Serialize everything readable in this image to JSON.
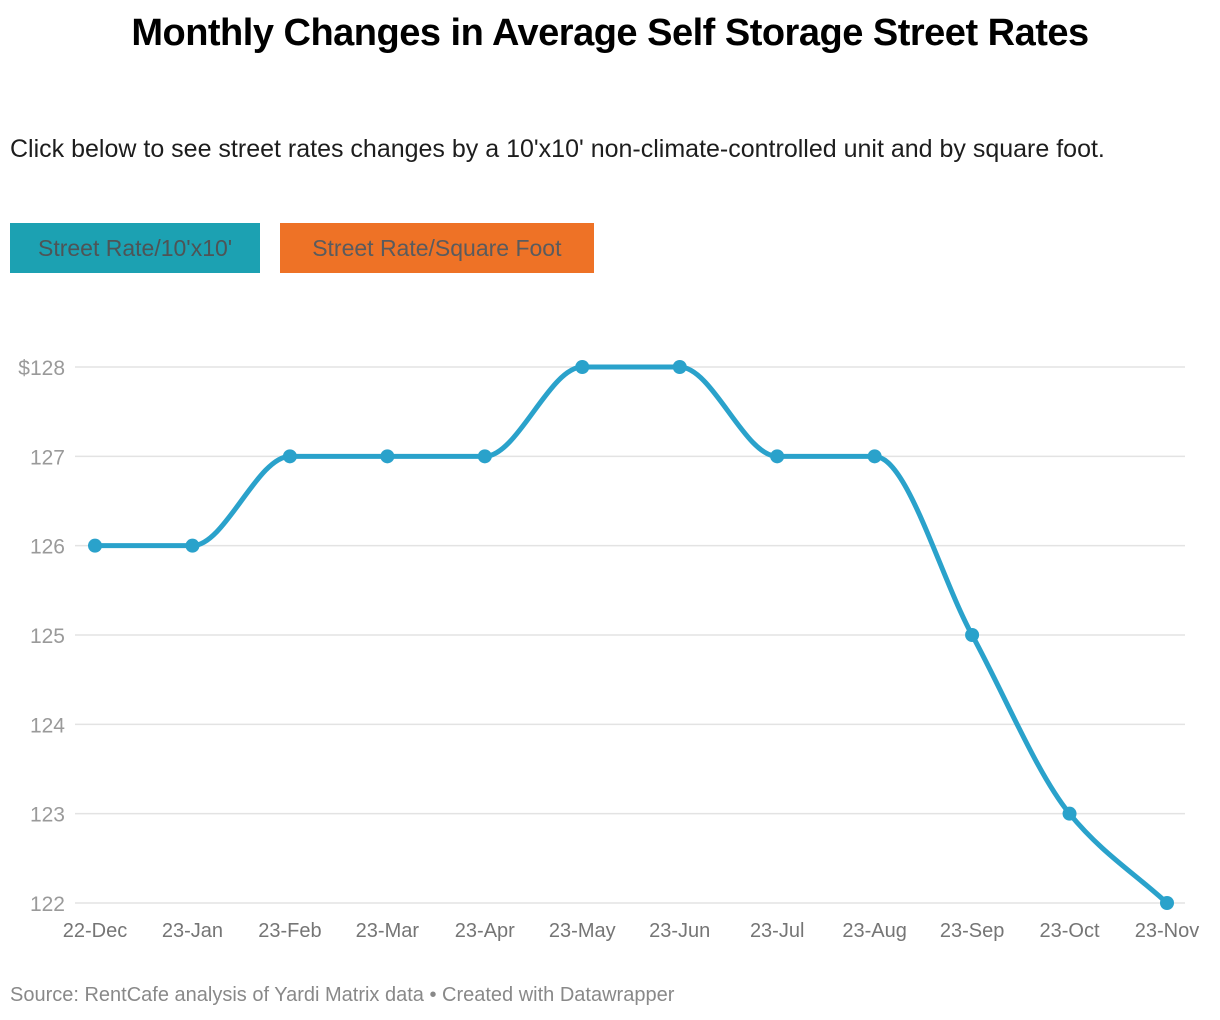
{
  "header": {
    "title": "Monthly Changes in Average Self Storage Street Rates",
    "subtitle": "Click below to see street rates changes by a 10'x10' non-climate-controlled unit and by square foot."
  },
  "tabs": [
    {
      "label": "Street Rate/10'x10'",
      "bg_color": "#1CA1B2",
      "text_color": "#4E5456"
    },
    {
      "label": "Street Rate/Square Foot",
      "bg_color": "#EE7226",
      "text_color": "#595B5E"
    }
  ],
  "chart_data": {
    "type": "line",
    "title": "Monthly Changes in Average Self Storage Street Rates",
    "categories": [
      "22-Dec",
      "23-Jan",
      "23-Feb",
      "23-Mar",
      "23-Apr",
      "23-May",
      "23-Jun",
      "23-Jul",
      "23-Aug",
      "23-Sep",
      "23-Oct",
      "23-Nov"
    ],
    "series": [
      {
        "name": "Street Rate/10'x10'",
        "values": [
          126,
          126,
          127,
          127,
          127,
          128,
          128,
          127,
          127,
          125,
          123,
          122
        ]
      }
    ],
    "ylim": [
      122,
      128
    ],
    "ytick_values": [
      128,
      127,
      126,
      125,
      124,
      123,
      122
    ],
    "ytick_labels": [
      "$128",
      "127",
      "126",
      "125",
      "124",
      "123",
      "122"
    ],
    "grid": true,
    "legend": "none",
    "line_color": "#2AA2CB",
    "grid_color": "#E3E3E3",
    "ytick_color": "#9A9A9A",
    "xtick_color": "#757575"
  },
  "footer": {
    "source": "Source: RentCafe analysis of Yardi Matrix data • Created with Datawrapper"
  }
}
